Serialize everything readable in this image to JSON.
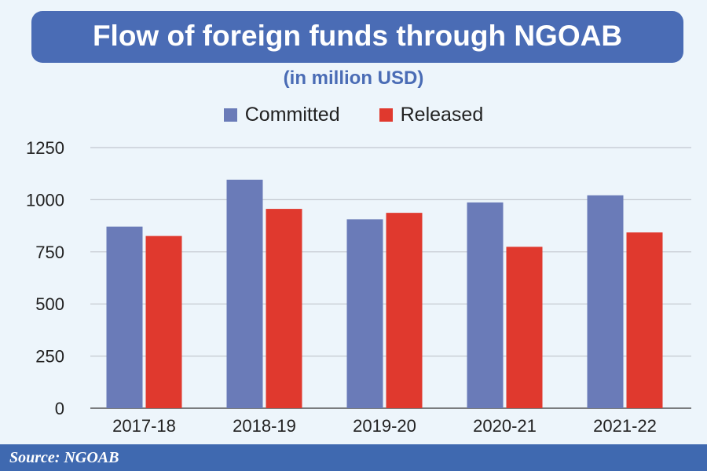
{
  "chart_data": {
    "type": "bar",
    "title": "Flow of foreign funds through NGOAB",
    "subtitle": "(in million USD)",
    "categories": [
      "2017-18",
      "2018-19",
      "2019-20",
      "2020-21",
      "2021-22"
    ],
    "series": [
      {
        "name": "Committed",
        "color": "#6a7bb8",
        "values": [
          871,
          1096,
          906,
          987,
          1021
        ]
      },
      {
        "name": "Released",
        "color": "#e0392e",
        "values": [
          826,
          956,
          937,
          774,
          843
        ]
      }
    ],
    "yticks": [
      0,
      250,
      500,
      750,
      1000,
      1250
    ],
    "ylim": [
      0,
      1250
    ],
    "grid": true,
    "legend_position": "top"
  },
  "footer": {
    "source": "Source: NGOAB"
  }
}
